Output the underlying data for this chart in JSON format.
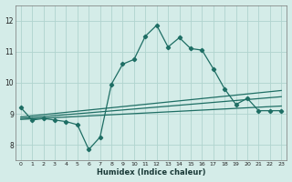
{
  "title": "",
  "xlabel": "Humidex (Indice chaleur)",
  "xlim": [
    -0.5,
    23.5
  ],
  "ylim": [
    7.5,
    12.5
  ],
  "yticks": [
    8,
    9,
    10,
    11,
    12
  ],
  "xticks": [
    0,
    1,
    2,
    3,
    4,
    5,
    6,
    7,
    8,
    9,
    10,
    11,
    12,
    13,
    14,
    15,
    16,
    17,
    18,
    19,
    20,
    21,
    22,
    23
  ],
  "bg_color": "#d4ece8",
  "grid_color": "#b0d4ce",
  "line_color": "#1e6e64",
  "main_curve": {
    "x": [
      0,
      1,
      2,
      3,
      4,
      5,
      6,
      7,
      8,
      9,
      10,
      11,
      12,
      13,
      14,
      15,
      16,
      17,
      18,
      19,
      20,
      21,
      22,
      23
    ],
    "y": [
      9.2,
      8.8,
      8.85,
      8.8,
      8.75,
      8.65,
      7.85,
      8.25,
      9.95,
      10.6,
      10.75,
      11.5,
      11.85,
      11.15,
      11.45,
      11.1,
      11.05,
      10.45,
      9.8,
      9.3,
      9.5,
      9.1,
      9.1,
      9.1
    ]
  },
  "trend1": {
    "x": [
      0,
      23
    ],
    "y": [
      8.85,
      9.55
    ]
  },
  "trend2": {
    "x": [
      0,
      23
    ],
    "y": [
      8.9,
      9.75
    ]
  },
  "trend3": {
    "x": [
      0,
      23
    ],
    "y": [
      8.82,
      9.25
    ]
  }
}
